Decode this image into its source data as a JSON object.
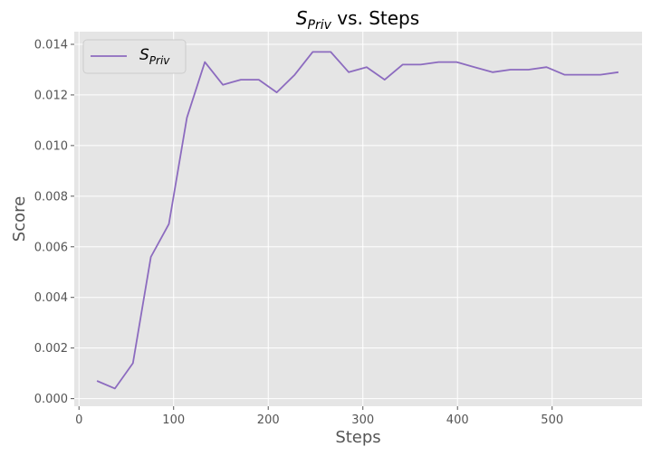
{
  "chart_data": {
    "type": "line",
    "title": {
      "symbol": "S",
      "subscript": "Priv",
      "suffix": " vs. Steps"
    },
    "xlabel": "Steps",
    "ylabel": "Score",
    "xlim": [
      -5,
      595
    ],
    "ylim": [
      -0.0003,
      0.0145
    ],
    "x_ticks": [
      0,
      100,
      200,
      300,
      400,
      500
    ],
    "x_tick_labels": [
      "0",
      "100",
      "200",
      "300",
      "400",
      "500"
    ],
    "y_ticks": [
      0.0,
      0.002,
      0.004,
      0.006,
      0.008,
      0.01,
      0.012,
      0.014
    ],
    "y_tick_labels": [
      "0.000",
      "0.002",
      "0.004",
      "0.006",
      "0.008",
      "0.010",
      "0.012",
      "0.014"
    ],
    "grid": true,
    "legend_position": "top-left",
    "colors": {
      "background": "#e5e5e5",
      "grid": "#ffffff",
      "line": "#8c6bbf"
    },
    "series": [
      {
        "name": {
          "symbol": "S",
          "subscript": "Priv"
        },
        "x": [
          19,
          38,
          57,
          76,
          95,
          114,
          133,
          152,
          171,
          190,
          209,
          228,
          247,
          266,
          285,
          304,
          323,
          342,
          361,
          380,
          399,
          418,
          437,
          456,
          475,
          494,
          513,
          532,
          551,
          570
        ],
        "y": [
          0.0007,
          0.0004,
          0.0014,
          0.0056,
          0.0069,
          0.0111,
          0.0133,
          0.0124,
          0.0126,
          0.0126,
          0.0121,
          0.0128,
          0.0137,
          0.0137,
          0.0129,
          0.0131,
          0.0126,
          0.0132,
          0.0132,
          0.0133,
          0.0133,
          0.0131,
          0.0129,
          0.013,
          0.013,
          0.0131,
          0.0128,
          0.0128,
          0.0128,
          0.0129
        ]
      }
    ]
  }
}
